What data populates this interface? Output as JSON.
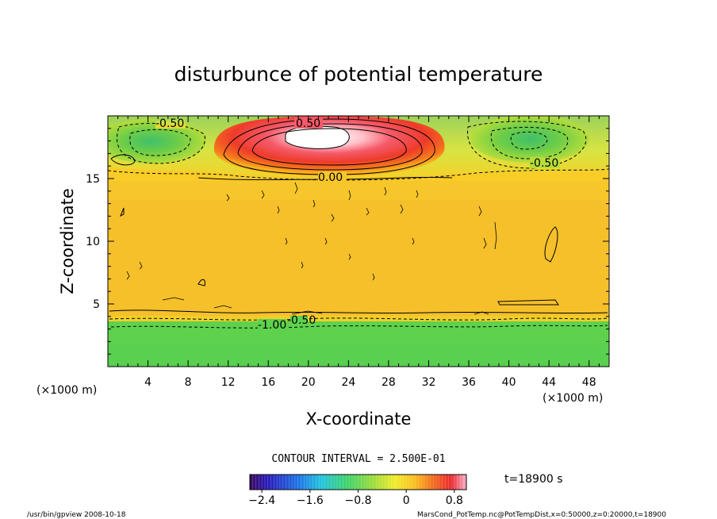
{
  "chart_data": {
    "type": "heatmap",
    "title": "disturbunce of potential temperature",
    "xlabel": "X-coordinate",
    "ylabel": "Z-coordinate",
    "x_unit_left": "(×1000 m)",
    "x_unit_right": "(×1000 m)",
    "xlim": [
      0,
      50
    ],
    "ylim": [
      0,
      20
    ],
    "x_ticks": [
      4,
      8,
      12,
      16,
      20,
      24,
      28,
      32,
      36,
      40,
      44,
      48
    ],
    "y_ticks": [
      5,
      10,
      15
    ],
    "contour_labels": [
      {
        "text": "-0.50",
        "x": 5.6,
        "z": 19.3
      },
      {
        "text": "0.50",
        "x": 20.4,
        "z": 19.3
      },
      {
        "text": "-0.50",
        "x": 43.2,
        "z": 15.6
      },
      {
        "text": "0.00",
        "x": 22.5,
        "z": 14.8
      },
      {
        "text": "-1.00",
        "x": 16.4,
        "z": 3.3
      },
      {
        "text": "-0.50",
        "x": 18.6,
        "z": 3.7
      }
    ],
    "contour_interval_text": "CONTOUR INTERVAL = 2.500E-01",
    "colorbar": {
      "min": -2.6,
      "max": 1.0,
      "tick_values": [
        -2.4,
        -1.6,
        -0.8,
        0,
        0.8
      ],
      "tick_labels": [
        "−2.4",
        "−1.6",
        "−0.8",
        "0",
        "0.8"
      ]
    },
    "time_label": "t=18900 s"
  },
  "footer": {
    "left": "/usr/bin/gpview   2008-10-18",
    "right": "MarsCond_PotTemp.nc@PotTempDist,x=0:50000,z=0:20000,t=18900"
  }
}
